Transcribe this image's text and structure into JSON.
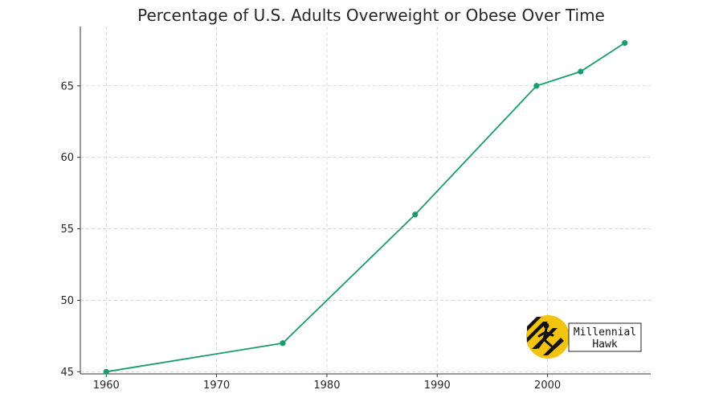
{
  "chart_data": {
    "type": "line",
    "title": "Percentage of U.S. Adults Overweight or Obese Over Time",
    "xlabel": "",
    "ylabel": "",
    "x": [
      1960,
      1976,
      1988,
      1999,
      2003,
      2007
    ],
    "series": [
      {
        "values": [
          45,
          47,
          56,
          65,
          66,
          68
        ],
        "color": "#1a9c6c"
      }
    ],
    "xlim": [
      1957.65,
      2009.35
    ],
    "ylim": [
      44.85,
      69.15
    ],
    "xticks": [
      1960,
      1970,
      1980,
      1990,
      2000
    ],
    "yticks": [
      45,
      50,
      55,
      60,
      65
    ],
    "grid": true,
    "legend": "none"
  },
  "logo": {
    "line1": "Millennial",
    "line2": "Hawk",
    "circle_color": "#f2c40f",
    "icon": "runner-icon"
  }
}
